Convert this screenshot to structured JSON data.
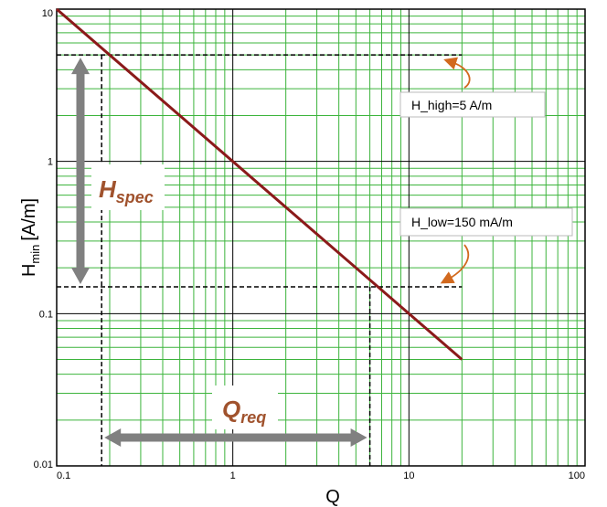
{
  "chart_data": {
    "type": "line",
    "xscale": "log",
    "yscale": "log",
    "xlim": [
      0.1,
      100
    ],
    "ylim": [
      0.01,
      10
    ],
    "xlabel": "Q",
    "ylabel": "H",
    "ylabel_sub": "min",
    "ylabel_unit": "[A/m]",
    "xticks": [
      "0.1",
      "1",
      "10",
      "100"
    ],
    "yticks": [
      "0.01",
      "0.1",
      "1",
      "10"
    ],
    "grid": true,
    "series": [
      {
        "x": [
          0.1,
          20
        ],
        "y": [
          10,
          0.05
        ]
      }
    ],
    "reference_lines": {
      "h_high": 5,
      "h_low": 0.15,
      "q_low": 0.18,
      "q_high": 6.0,
      "h_high_label": "H_high=5 A/m",
      "h_low_label": "H_low=150 mA/m"
    },
    "range_labels": {
      "h_spec_main": "H",
      "h_spec_sub": "spec",
      "q_req_main": "Q",
      "q_req_sub": "req"
    },
    "colors": {
      "series": "#8b1a1a",
      "grid_major": "#000000",
      "grid_minor": "#3cb43c",
      "arrows": "#808080",
      "callout": "#d2691e",
      "range_label": "#a0522d"
    }
  }
}
